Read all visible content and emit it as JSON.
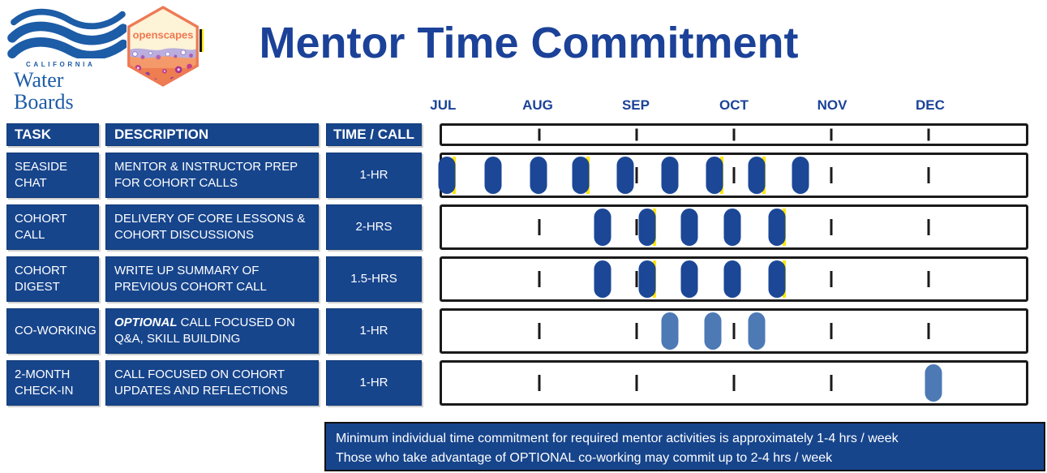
{
  "title": "Mentor Time Commitment",
  "theme": {
    "cell_blue": "#17458c",
    "title_blue": "#1b4298",
    "logo_blue": "#1d5ca6"
  },
  "logos": {
    "water_boards": {
      "state": "CALIFORNIA",
      "name": "Water Boards"
    },
    "openscapes": {
      "label": "openscapes"
    }
  },
  "table": {
    "headers": {
      "task": "TASK",
      "description": "DESCRIPTION",
      "time": "TIME / CALL"
    },
    "rows": [
      {
        "task": "SEASIDE CHAT",
        "desc_em": "",
        "desc": "MENTOR & INSTRUCTOR PREP\nFOR COHORT CALLS",
        "time": "1-HR"
      },
      {
        "task": "COHORT CALL",
        "desc_em": "",
        "desc": "DELIVERY OF CORE LESSONS &\nCOHORT DISCUSSIONS",
        "time": "2-HRS"
      },
      {
        "task": "COHORT\nDIGEST",
        "desc_em": "",
        "desc": "WRITE UP SUMMARY OF\nPREVIOUS COHORT CALL",
        "time": "1.5-HRS"
      },
      {
        "task": "CO-WORKING",
        "desc_em": "OPTIONAL",
        "desc": " CALL FOCUSED ON\nQ&A, SKILL BUILDING",
        "time": "1-HR"
      },
      {
        "task": "2-MONTH\nCHECK-IN",
        "desc_em": "",
        "desc": "CALL FOCUSED ON COHORT\nUPDATES AND REFLECTIONS",
        "time": "1-HR"
      }
    ]
  },
  "chart_data": {
    "type": "gantt-timeline",
    "title": "Mentor Time Commitment",
    "months": [
      "JUL",
      "AUG",
      "SEP",
      "OCT",
      "NOV",
      "DEC"
    ],
    "axis_range": [
      "start of July",
      "end of December"
    ],
    "month_label_pct": [
      0.6,
      16.667,
      33.333,
      50,
      66.667,
      83.333
    ],
    "tick_pct": [
      16.667,
      33.333,
      50,
      66.667,
      83.333
    ],
    "rows": [
      {
        "task": "SEASIDE CHAT",
        "time_per_call": "1-HR",
        "pill_color": "dark",
        "events_pct": [
          0.8,
          8.7,
          16.5,
          23.8,
          31.4,
          39.0,
          46.6,
          53.9,
          61.4
        ],
        "yellow_marker_indexes": [
          0,
          3,
          6,
          7
        ],
        "cadence": "biweekly, early July through mid October"
      },
      {
        "task": "COHORT CALL",
        "time_per_call": "2-HRS",
        "pill_color": "dark",
        "events_pct": [
          27.5,
          35.1,
          42.4,
          49.7,
          57.3
        ],
        "yellow_marker_indexes": [
          1,
          4
        ],
        "cadence": "biweekly, late August through mid October"
      },
      {
        "task": "COHORT DIGEST",
        "time_per_call": "1.5-HRS",
        "pill_color": "dark",
        "events_pct": [
          27.5,
          35.1,
          42.4,
          49.7,
          57.3
        ],
        "yellow_marker_indexes": [
          1,
          4
        ],
        "cadence": "biweekly, late August through mid October"
      },
      {
        "task": "CO-WORKING",
        "time_per_call": "1-HR",
        "pill_color": "light",
        "events_pct": [
          39.0,
          46.4,
          53.9
        ],
        "yellow_marker_indexes": [],
        "cadence": "biweekly, mid September through mid October"
      },
      {
        "task": "2-MONTH CHECK-IN",
        "time_per_call": "1-HR",
        "pill_color": "light",
        "events_pct": [
          84.2
        ],
        "yellow_marker_indexes": [],
        "cadence": "once, early December"
      }
    ],
    "colors": {
      "dark_pill": "#1b4796",
      "light_pill": "#4d79b5",
      "yellow": "#ffe600"
    },
    "legend_position": "none",
    "grid": "month ticks only"
  },
  "note": {
    "line1": "Minimum individual time commitment for required mentor activities is approximately 1-4 hrs / week",
    "line2": "Those who take advantage of OPTIONAL co-working may commit up to 2-4 hrs / week"
  }
}
